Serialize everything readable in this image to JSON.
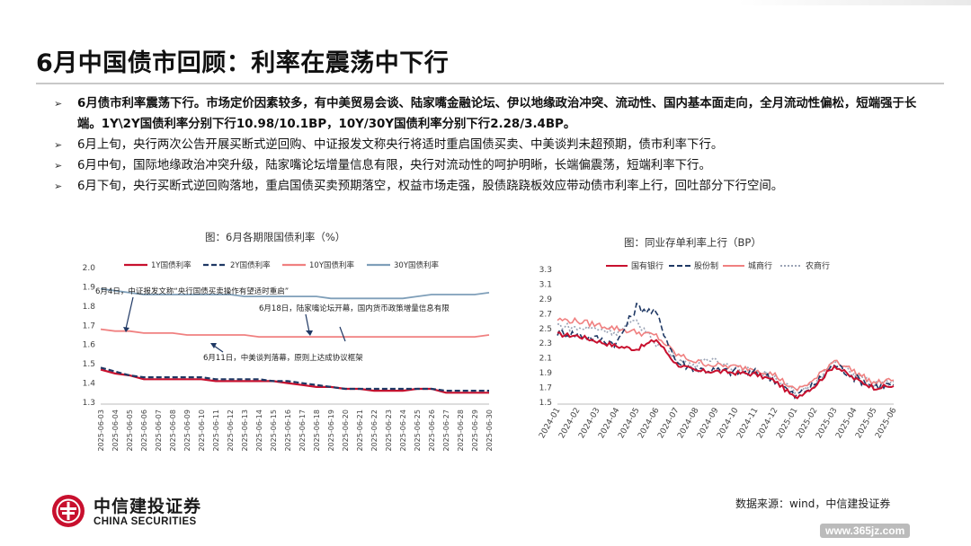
{
  "slide": {
    "title": "6月中国债市回顾：利率在震荡中下行",
    "bullets": [
      {
        "text": "6月债市利率震荡下行。市场定价因素较多，有中美贸易会谈、陆家嘴金融论坛、伊以地缘政治冲突、流动性、国内基本面走向，全月流动性偏松，短端强于长端。1Y\\2Y国债利率分别下行10.98/10.1BP，10Y/30Y国债利率分别下行2.28/3.4BP。",
        "bold": true
      },
      {
        "text": "6月上旬，央行两次公告开展买断式逆回购、中证报发文称央行将适时重启国债买卖、中美谈判未超预期，债市利率下行。",
        "bold": false
      },
      {
        "text": "6月中旬，国际地缘政治冲突升级，陆家嘴论坛增量信息有限，央行对流动性的呵护明晰，长端偏震荡，短端利率下行。",
        "bold": false
      },
      {
        "text": "6月下旬，央行买断式逆回购落地，重启国债买卖预期落空，权益市场走强，股债跷跷板效应带动债市利率上行，回吐部分下行空间。",
        "bold": false
      }
    ],
    "source": "数据来源：wind，中信建投证券",
    "logo_cn": "中信建投证券",
    "logo_en": "CHINA SECURITIES",
    "watermark": "www.365jz.com",
    "colors": {
      "red": "#c8102e",
      "navy": "#1f3864",
      "pink": "#f08080",
      "steel": "#7f9fb9",
      "gray_dot": "#9aa3b5"
    }
  },
  "chart_data": [
    {
      "type": "line",
      "title": "图：6月各期限国债利率（%）",
      "x": [
        "2025-06-03",
        "2025-06-04",
        "2025-06-05",
        "2025-06-06",
        "2025-06-07",
        "2025-06-08",
        "2025-06-09",
        "2025-06-10",
        "2025-06-11",
        "2025-06-12",
        "2025-06-13",
        "2025-06-14",
        "2025-06-15",
        "2025-06-16",
        "2025-06-17",
        "2025-06-18",
        "2025-06-19",
        "2025-06-20",
        "2025-06-21",
        "2025-06-22",
        "2025-06-23",
        "2025-06-24",
        "2025-06-25",
        "2025-06-26",
        "2025-06-27",
        "2025-06-28",
        "2025-06-29",
        "2025-06-30"
      ],
      "ylim": [
        1.3,
        2.0
      ],
      "yticks": [
        "2.0",
        "1.9",
        "1.8",
        "1.7",
        "1.6",
        "1.5",
        "1.4",
        "1.3"
      ],
      "series": [
        {
          "name": "1Y国债利率",
          "color": "#c8102e",
          "style": "solid",
          "values": [
            1.47,
            1.45,
            1.44,
            1.42,
            1.42,
            1.42,
            1.42,
            1.42,
            1.41,
            1.41,
            1.41,
            1.41,
            1.41,
            1.4,
            1.39,
            1.38,
            1.38,
            1.37,
            1.37,
            1.36,
            1.36,
            1.36,
            1.37,
            1.37,
            1.35,
            1.35,
            1.35,
            1.35
          ]
        },
        {
          "name": "2Y国债利率",
          "color": "#1f3864",
          "style": "dashed",
          "values": [
            1.48,
            1.46,
            1.44,
            1.43,
            1.43,
            1.43,
            1.43,
            1.43,
            1.42,
            1.42,
            1.42,
            1.42,
            1.41,
            1.41,
            1.4,
            1.39,
            1.38,
            1.37,
            1.37,
            1.37,
            1.37,
            1.37,
            1.37,
            1.37,
            1.36,
            1.36,
            1.36,
            1.36
          ]
        },
        {
          "name": "10Y国债利率",
          "color": "#f08080",
          "style": "solid",
          "values": [
            1.68,
            1.67,
            1.67,
            1.66,
            1.66,
            1.66,
            1.65,
            1.65,
            1.65,
            1.65,
            1.65,
            1.64,
            1.64,
            1.64,
            1.64,
            1.64,
            1.64,
            1.64,
            1.64,
            1.64,
            1.64,
            1.64,
            1.64,
            1.64,
            1.64,
            1.64,
            1.64,
            1.65
          ]
        },
        {
          "name": "30Y国债利率",
          "color": "#7f9fb9",
          "style": "solid",
          "values": [
            1.89,
            1.88,
            1.87,
            1.86,
            1.86,
            1.86,
            1.86,
            1.86,
            1.86,
            1.86,
            1.85,
            1.85,
            1.85,
            1.85,
            1.85,
            1.85,
            1.84,
            1.84,
            1.84,
            1.84,
            1.84,
            1.84,
            1.85,
            1.86,
            1.86,
            1.86,
            1.86,
            1.87
          ]
        }
      ],
      "annotations": [
        {
          "text": "6月4日，中证报发文称“央行国债买卖操作有望适时重启”",
          "x": "2025-06-04",
          "y": 1.67
        },
        {
          "text": "6月18日，陆家嘴论坛开幕，国内货币政策增量信息有限",
          "x": "2025-06-18",
          "y": 1.64
        },
        {
          "text": "6月11日，中美谈判落幕，原则上达成协议框架",
          "x": "2025-06-10",
          "y": 1.65
        }
      ]
    },
    {
      "type": "line",
      "title": "图：同业存单利率上行（BP）",
      "x_ticks": [
        "2024-01",
        "2024-02",
        "2024-03",
        "2024-04",
        "2024-05",
        "2024-06",
        "2024-07",
        "2024-08",
        "2024-09",
        "2024-10",
        "2024-11",
        "2024-12",
        "2025-01",
        "2025-02",
        "2025-03",
        "2025-04",
        "2025-05",
        "2025-06"
      ],
      "ylim": [
        1.5,
        3.3
      ],
      "yticks": [
        "3.3",
        "3.1",
        "2.9",
        "2.7",
        "2.5",
        "2.3",
        "2.1",
        "1.9",
        "1.7",
        "1.5"
      ],
      "series": [
        {
          "name": "国有银行",
          "color": "#c8102e",
          "style": "solid",
          "values": [
            2.42,
            2.4,
            2.33,
            2.26,
            2.22,
            2.35,
            2.02,
            1.92,
            1.92,
            1.9,
            1.88,
            1.79,
            1.56,
            1.72,
            2.0,
            1.82,
            1.7,
            1.72
          ]
        },
        {
          "name": "股份制",
          "color": "#1f3864",
          "style": "dashed",
          "values": [
            2.45,
            2.42,
            2.36,
            2.3,
            2.8,
            2.7,
            2.05,
            1.95,
            1.93,
            1.91,
            1.9,
            1.81,
            1.58,
            1.74,
            2.02,
            1.84,
            1.72,
            1.74
          ]
        },
        {
          "name": "城商行",
          "color": "#f08080",
          "style": "solid",
          "values": [
            2.62,
            2.6,
            2.55,
            2.5,
            2.45,
            2.4,
            2.15,
            2.05,
            2.0,
            1.98,
            1.95,
            1.87,
            1.66,
            1.8,
            2.08,
            1.92,
            1.76,
            1.8
          ]
        },
        {
          "name": "农商行",
          "color": "#9aa3b5",
          "style": "dotted",
          "values": [
            2.55,
            2.5,
            2.5,
            2.45,
            2.6,
            2.3,
            2.1,
            2.0,
            2.1,
            1.95,
            1.92,
            1.84,
            1.63,
            1.76,
            2.05,
            1.88,
            1.74,
            1.78
          ]
        }
      ]
    }
  ]
}
